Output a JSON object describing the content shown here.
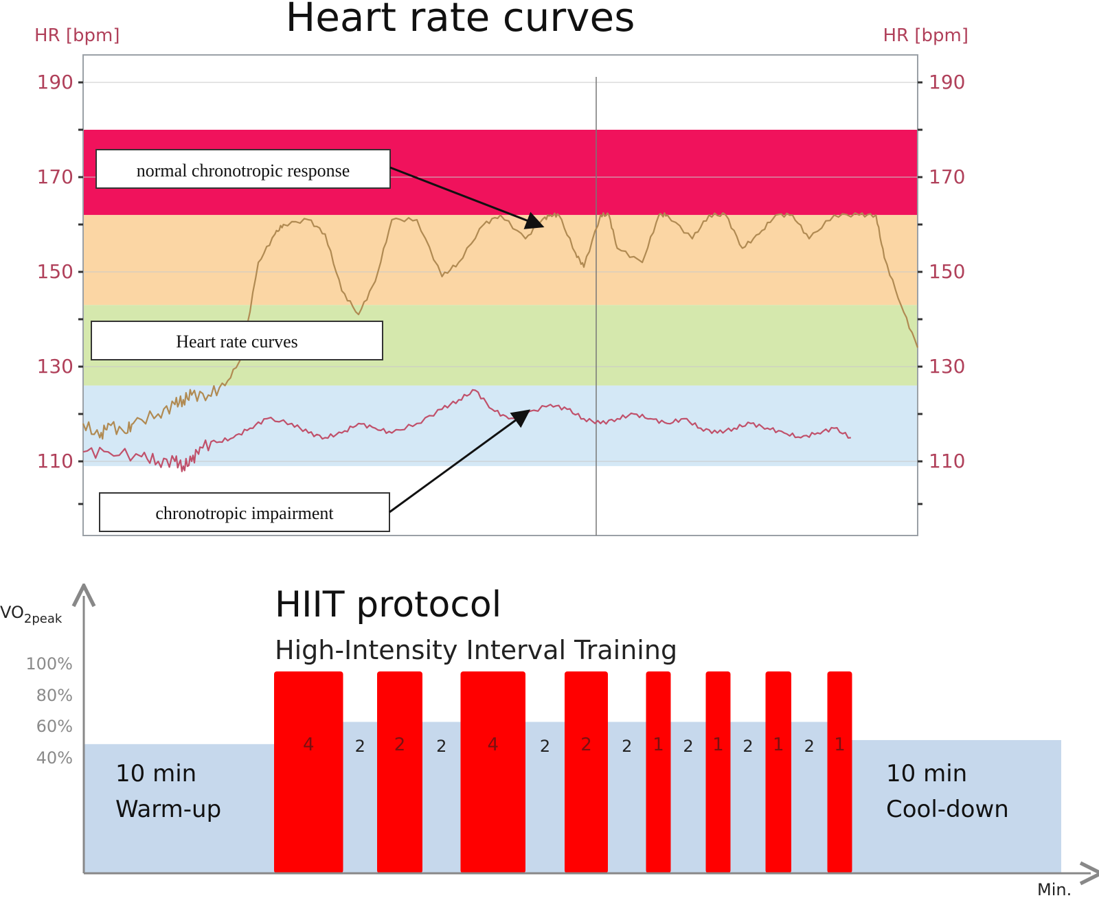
{
  "colors": {
    "axis_label": "#b0405a",
    "zone_red": "#f0125c",
    "zone_orange": "#fbd6a4",
    "zone_green": "#d5e8ad",
    "zone_blue": "#d4e8f6",
    "curve_normal": "#b08a52",
    "curve_impaired": "#c0506a",
    "work_bar": "#ff0000",
    "rest_block": "#c6d8ec",
    "hiit_axis": "#888888"
  },
  "chart_data": [
    {
      "type": "line",
      "title": "Heart rate curves",
      "ylabel_left": "HR [bpm]",
      "ylabel_right": "HR [bpm]",
      "ylim": [
        92,
        195
      ],
      "yticks": [
        {
          "value": 190,
          "label": "190"
        },
        {
          "value": 170,
          "label": "170"
        },
        {
          "value": 150,
          "label": "150"
        },
        {
          "value": 130,
          "label": "130"
        },
        {
          "value": 110,
          "label": "110"
        }
      ],
      "minor_ticks": [
        180,
        160,
        140,
        120,
        101
      ],
      "grid": true,
      "zones": [
        {
          "name": "red",
          "from": 162,
          "to": 180
        },
        {
          "name": "orange",
          "from": 143,
          "to": 162
        },
        {
          "name": "green",
          "from": 126,
          "to": 143
        },
        {
          "name": "blue",
          "from": 109,
          "to": 126
        }
      ],
      "series": [
        {
          "name": "normal chronotropic response",
          "x": [
            0,
            2,
            3,
            5,
            6,
            9,
            11,
            12,
            13,
            15,
            17,
            19,
            21,
            23,
            24,
            27,
            29,
            31,
            33,
            35,
            37,
            40,
            43,
            45,
            48,
            50,
            53,
            55,
            56,
            57,
            59,
            60,
            62,
            63,
            64,
            67,
            69,
            70,
            73,
            75,
            77,
            79,
            81,
            83,
            85,
            87,
            90,
            93,
            95,
            96,
            98,
            100
          ],
          "values": [
            118,
            115,
            118,
            116,
            118,
            120,
            122,
            123,
            124,
            124,
            126,
            132,
            152,
            158,
            160,
            161,
            158,
            146,
            141,
            148,
            161,
            161,
            149,
            152,
            160,
            162,
            157,
            161,
            162,
            162,
            154,
            151,
            162,
            162,
            155,
            152,
            162,
            162,
            157,
            162,
            162,
            155,
            158,
            162,
            162,
            157,
            162,
            162,
            162,
            153,
            143,
            134
          ]
        },
        {
          "name": "chronotropic impairment",
          "x": [
            0,
            3,
            7,
            9,
            11,
            12,
            13,
            14,
            16,
            18,
            20,
            22,
            25,
            27,
            29,
            31,
            33,
            35,
            37,
            40,
            43,
            45,
            47,
            49,
            51,
            53,
            56,
            58,
            60,
            62,
            64,
            66,
            68,
            70,
            72,
            74,
            76,
            78,
            80,
            82,
            84,
            86,
            88,
            90,
            92
          ],
          "values": [
            112,
            112,
            111,
            110,
            110,
            109,
            110,
            113,
            114,
            115,
            117,
            119,
            118,
            116,
            115,
            116,
            118,
            117,
            116,
            118,
            121,
            123,
            125,
            121,
            119,
            120,
            122,
            121,
            119,
            118,
            119,
            120,
            119,
            118,
            119,
            117,
            116,
            117,
            118,
            117,
            116,
            115,
            116,
            117,
            115
          ]
        }
      ],
      "annotations": [
        {
          "text": "normal chronotropic response",
          "x": 55,
          "y": 159
        },
        {
          "text": "Heart rate curves"
        },
        {
          "text": "chronotropic impairment",
          "x": 53,
          "y": 121
        }
      ]
    },
    {
      "type": "bar",
      "title": "HIIT protocol",
      "subtitle": "High-Intensity Interval Training",
      "ylabel": "VO",
      "ylabel_sub": "2peak",
      "xlabel": "Min.",
      "ylim": [
        0,
        100
      ],
      "yticks": [
        {
          "value": 100,
          "label": "100%"
        },
        {
          "value": 85,
          "label": "80%"
        },
        {
          "value": 70,
          "label": "60%"
        },
        {
          "value": 55,
          "label": "40%"
        }
      ],
      "warmup": {
        "label_line1": "10 min",
        "label_line2": "Warm-up",
        "level": 64
      },
      "cooldown": {
        "label_line1": "10 min",
        "label_line2": "Cool-down",
        "level": 66
      },
      "rest_level": 75,
      "segments": [
        {
          "kind": "work",
          "minutes": "4",
          "start": 0,
          "end": 6.7
        },
        {
          "kind": "rest",
          "minutes": "2",
          "start": 6.7,
          "end": 10.0
        },
        {
          "kind": "work",
          "minutes": "2",
          "start": 10.0,
          "end": 14.4
        },
        {
          "kind": "rest",
          "minutes": "2",
          "start": 14.4,
          "end": 18.1
        },
        {
          "kind": "work",
          "minutes": "4",
          "start": 18.1,
          "end": 24.4
        },
        {
          "kind": "rest",
          "minutes": "2",
          "start": 24.4,
          "end": 28.2
        },
        {
          "kind": "work",
          "minutes": "2",
          "start": 28.2,
          "end": 32.4
        },
        {
          "kind": "rest",
          "minutes": "2",
          "start": 32.4,
          "end": 36.1
        },
        {
          "kind": "work",
          "minutes": "1",
          "start": 36.1,
          "end": 38.5
        },
        {
          "kind": "rest",
          "minutes": "2",
          "start": 38.5,
          "end": 41.9
        },
        {
          "kind": "work",
          "minutes": "1",
          "start": 41.9,
          "end": 44.3
        },
        {
          "kind": "rest",
          "minutes": "2",
          "start": 44.3,
          "end": 47.7
        },
        {
          "kind": "work",
          "minutes": "1",
          "start": 47.7,
          "end": 50.2
        },
        {
          "kind": "rest",
          "minutes": "2",
          "start": 50.2,
          "end": 53.7
        },
        {
          "kind": "work",
          "minutes": "1",
          "start": 53.7,
          "end": 56.1
        }
      ]
    }
  ]
}
